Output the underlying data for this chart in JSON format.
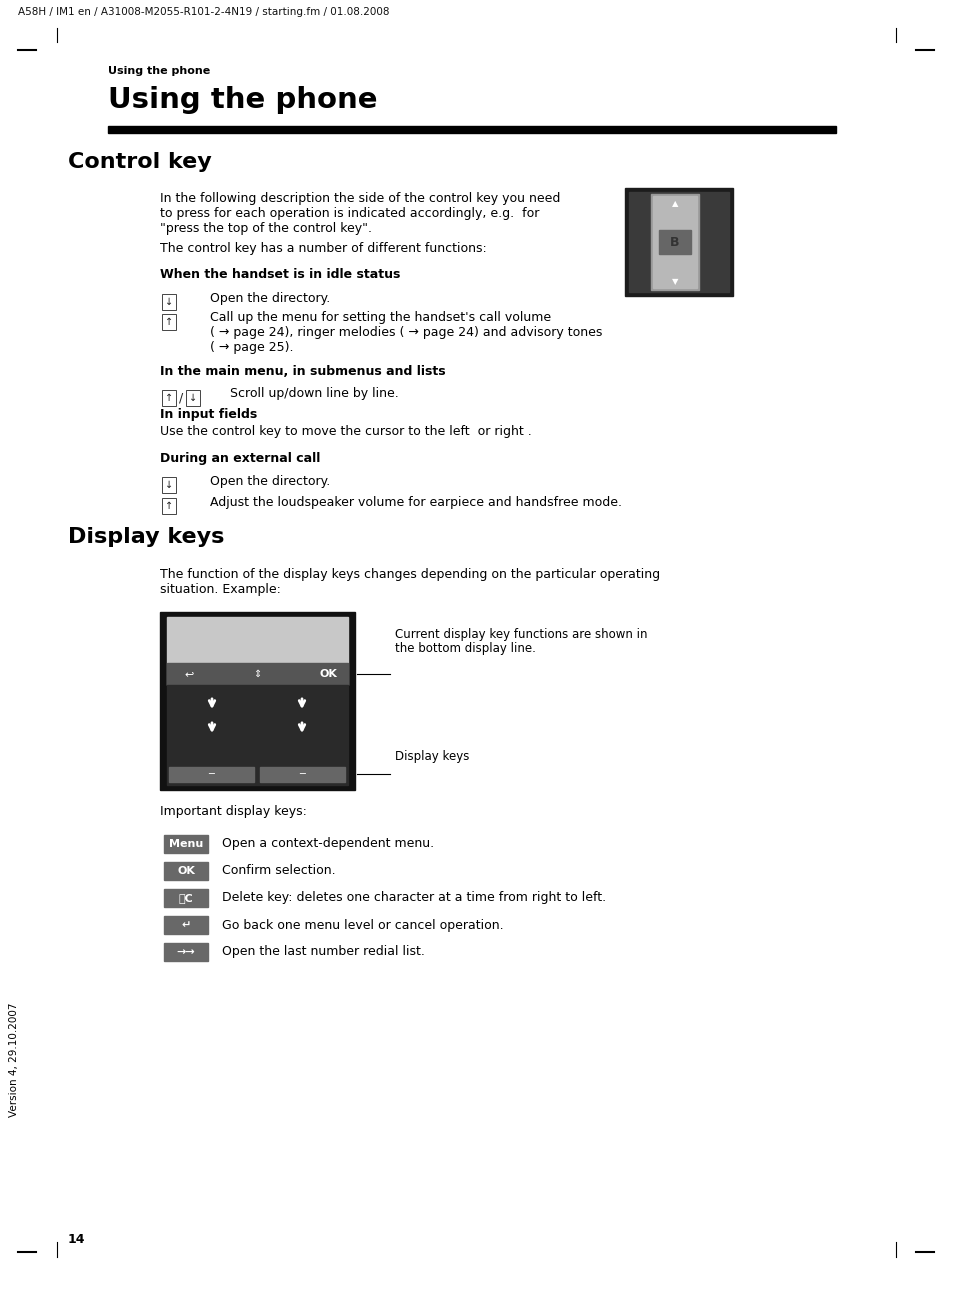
{
  "bg_color": "#ffffff",
  "text_color": "#000000",
  "header_text": "A58H / IM1 en / A31008-M2055-R101-2-4N19 / starting.fm / 01.08.2008",
  "section_label": "Using the phone",
  "page_title": "Using the phone",
  "section1_title": "Control key",
  "section1_intro1": "In the following description the side of the control key you need",
  "section1_intro2": "to press for each operation is indicated accordingly, e.g.  for",
  "section1_intro3": "\"press the top of the control key\".",
  "section1_intro4": "The control key has a number of different functions:",
  "sub1_title": "When the handset is in idle status",
  "sub1_item1": "Open the directory.",
  "sub1_item2": "Call up the menu for setting the handset's call volume",
  "sub1_item2b": "( → page 24), ringer melodies ( → page 24) and advisory tones",
  "sub1_item2c": "( → page 25).",
  "sub2_title": "In the main menu, in submenus and lists",
  "sub2_item1": "Scroll up/down line by line.",
  "sub3_title": "In input fields",
  "sub3_text": "Use the control key to move the cursor to the left  or right .",
  "sub4_title": "During an external call",
  "sub4_item1": "Open the directory.",
  "sub4_item2": "Adjust the loudspeaker volume for earpiece and handsfree mode.",
  "section2_title": "Display keys",
  "section2_intro1": "The function of the display keys changes depending on the particular operating",
  "section2_intro2": "situation. Example:",
  "callout1": "Current display key functions are shown in",
  "callout1b": "the bottom display line.",
  "callout2": "Display keys",
  "important_text": "Important display keys:",
  "keys": [
    {
      "label": "Menu",
      "desc": "Open a context-dependent menu."
    },
    {
      "label": "OK",
      "desc": "Confirm selection."
    },
    {
      "label": "〈C",
      "desc": "Delete key: deletes one character at a time from right to left."
    },
    {
      "label": "↵",
      "desc": "Go back one menu level or cancel operation."
    },
    {
      "label": "→→",
      "desc": "Open the last number redial list."
    }
  ],
  "page_number": "14",
  "version_text": "Version 4, 29.10.2007"
}
